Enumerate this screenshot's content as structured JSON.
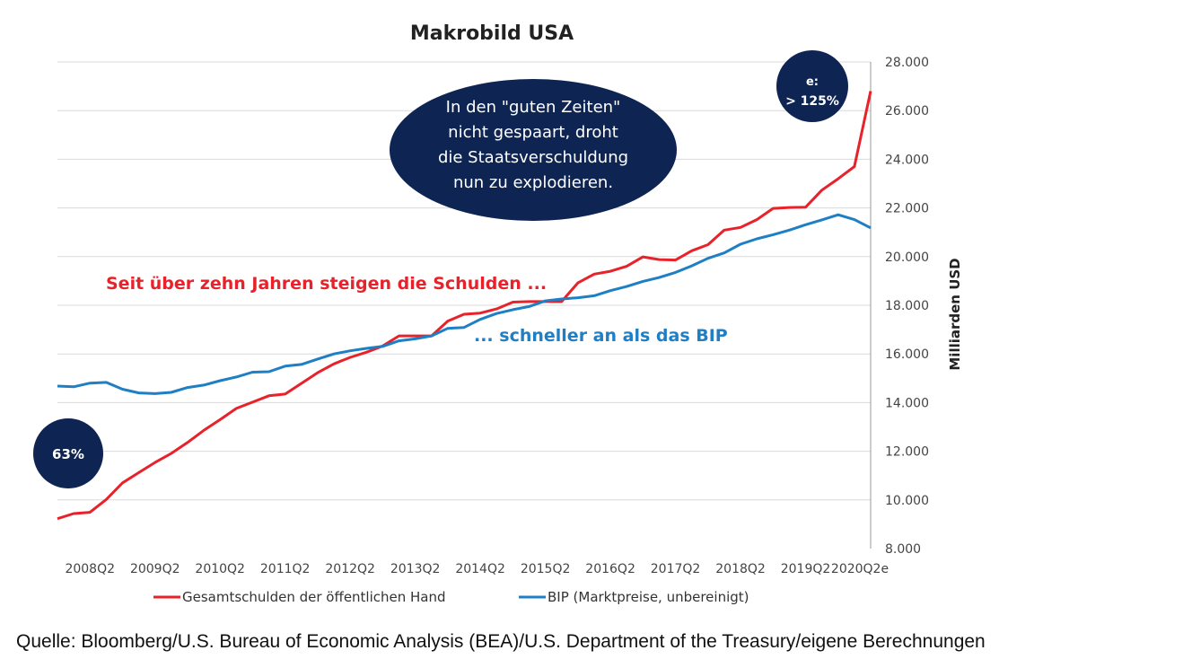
{
  "source": "Quelle: Bloomberg/U.S. Bureau of Economic Analysis (BEA)/U.S. Department of the Treasury/eigene Berechnungen",
  "chart_data": {
    "type": "line",
    "title": "Makrobild USA",
    "ylabel": "Milliarden USD",
    "ylim": [
      8000,
      28000
    ],
    "y_ticks": [
      "8.000",
      "10.000",
      "12.000",
      "14.000",
      "16.000",
      "18.000",
      "20.000",
      "22.000",
      "24.000",
      "26.000",
      "28.000"
    ],
    "y_tick_values": [
      8000,
      10000,
      12000,
      14000,
      16000,
      18000,
      20000,
      22000,
      24000,
      26000,
      28000
    ],
    "y_axis_side": "right",
    "grid": true,
    "x_labels": [
      "2008Q2",
      "2009Q2",
      "2010Q2",
      "2011Q2",
      "2012Q2",
      "2013Q2",
      "2014Q2",
      "2015Q2",
      "2016Q2",
      "2017Q2",
      "2018Q2",
      "2019Q2",
      "2020Q2e"
    ],
    "x": [
      "2007Q4",
      "2008Q1",
      "2008Q2",
      "2008Q3",
      "2008Q4",
      "2009Q1",
      "2009Q2",
      "2009Q3",
      "2009Q4",
      "2010Q1",
      "2010Q2",
      "2010Q3",
      "2010Q4",
      "2011Q1",
      "2011Q2",
      "2011Q3",
      "2011Q4",
      "2012Q1",
      "2012Q2",
      "2012Q3",
      "2012Q4",
      "2013Q1",
      "2013Q2",
      "2013Q3",
      "2013Q4",
      "2014Q1",
      "2014Q2",
      "2014Q3",
      "2014Q4",
      "2015Q1",
      "2015Q2",
      "2015Q3",
      "2015Q4",
      "2016Q1",
      "2016Q2",
      "2016Q3",
      "2016Q4",
      "2017Q1",
      "2017Q2",
      "2017Q3",
      "2017Q4",
      "2018Q1",
      "2018Q2",
      "2018Q3",
      "2018Q4",
      "2019Q1",
      "2019Q2",
      "2019Q3",
      "2019Q4",
      "2020Q1",
      "2020Q2e"
    ],
    "series": [
      {
        "name": "Gesamtschulden der öffentlichen Hand",
        "color": "#e8222a",
        "values": [
          9230,
          9440,
          9490,
          10020,
          10700,
          11120,
          11540,
          11910,
          12360,
          12860,
          13300,
          13760,
          14020,
          14280,
          14350,
          14790,
          15230,
          15590,
          15860,
          16070,
          16330,
          16740,
          16740,
          16740,
          17350,
          17630,
          17680,
          17850,
          18130,
          18150,
          18150,
          18150,
          18920,
          19280,
          19400,
          19600,
          19990,
          19880,
          19860,
          20240,
          20490,
          21090,
          21200,
          21520,
          21980,
          22020,
          22030,
          22730,
          23200,
          23700,
          26800
        ]
      },
      {
        "name": "BIP (Marktpreise, unbereinigt)",
        "color": "#1f7fc4",
        "values": [
          14680,
          14650,
          14800,
          14830,
          14550,
          14400,
          14370,
          14420,
          14620,
          14720,
          14900,
          15050,
          15250,
          15270,
          15500,
          15570,
          15790,
          16000,
          16130,
          16230,
          16310,
          16540,
          16620,
          16740,
          17050,
          17090,
          17420,
          17660,
          17820,
          17950,
          18180,
          18260,
          18310,
          18390,
          18600,
          18770,
          18980,
          19140,
          19350,
          19620,
          19930,
          20150,
          20510,
          20730,
          20900,
          21090,
          21310,
          21510,
          21720,
          21520,
          21180
        ]
      }
    ],
    "legend": {
      "placement": "bottom"
    },
    "annotations": {
      "bubble_center": {
        "lines": [
          "In den \"guten Zeiten\"",
          "nicht gespaart, droht",
          "die Staatsverschuldung",
          "nun zu explodieren."
        ],
        "color": "#0e2452"
      },
      "bubble_right": {
        "lines": [
          "e:",
          "> 125%"
        ],
        "color": "#0e2452"
      },
      "bubble_left": {
        "lines": [
          "63%"
        ],
        "color": "#0e2452"
      },
      "red_text": "Seit über zehn Jahren steigen die Schulden  ...",
      "blue_text": "... schneller an als das BIP"
    }
  }
}
